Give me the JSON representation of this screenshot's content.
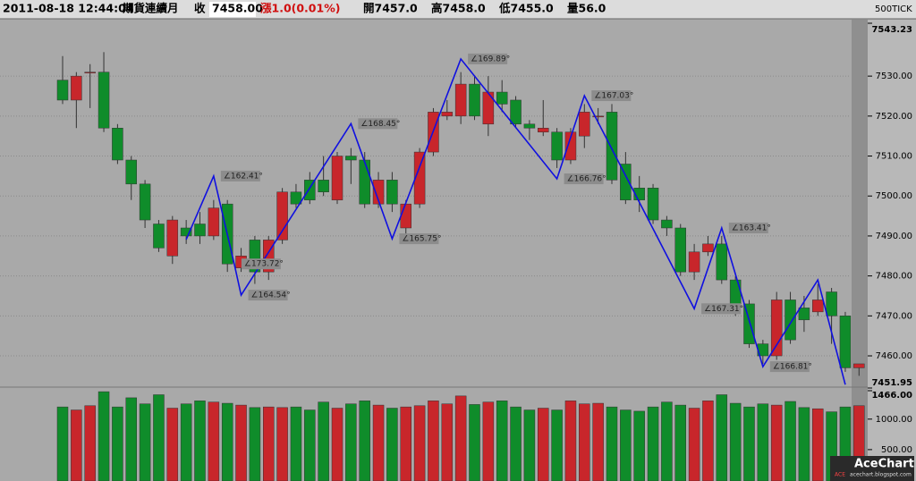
{
  "header": {
    "datetime": "2011-08-18 12:44:04",
    "symbol": "期貨連續月",
    "close_label": "收",
    "close": "7458.00",
    "change": "漲1.0(0.01%)",
    "open": "開7457.0",
    "high": "高7458.0",
    "low": "低7455.0",
    "volume": "量56.0",
    "interval": "500TICK"
  },
  "chart_data": {
    "type": "candlestick",
    "up_color": "#c8262b",
    "down_color": "#0f8c2a",
    "zigzag_color": "#1010e0",
    "open": [
      7529,
      7524,
      7531,
      7531,
      7517,
      7509,
      7503,
      7493,
      7485,
      7492,
      7493,
      7490,
      7498,
      7482,
      7489,
      7481,
      7489,
      7501,
      7504,
      7504,
      7499,
      7510,
      7509,
      7498,
      7504,
      7492,
      7498,
      7511,
      7520,
      7520,
      7528,
      7518,
      7526,
      7524,
      7518,
      7516,
      7516,
      7509,
      7515,
      7520,
      7521,
      7508,
      7502,
      7502,
      7494,
      7492,
      7481,
      7486,
      7488,
      7479,
      7473,
      7463,
      7460,
      7474,
      7472,
      7471,
      7476,
      7470,
      7457
    ],
    "high": [
      7535,
      7531,
      7533,
      7536,
      7518,
      7510,
      7504,
      7494,
      7495,
      7494,
      7496,
      7499,
      7499,
      7487,
      7490,
      7490,
      7502,
      7503,
      7506,
      7510,
      7511,
      7512,
      7511,
      7506,
      7506,
      7499,
      7512,
      7522,
      7524,
      7531,
      7530,
      7530,
      7529,
      7525,
      7519,
      7524,
      7517,
      7517,
      7523,
      7522,
      7523,
      7511,
      7505,
      7503,
      7495,
      7493,
      7488,
      7490,
      7490,
      7480,
      7474,
      7464,
      7476,
      7476,
      7475,
      7478,
      7477,
      7471,
      7458
    ],
    "low": [
      7523,
      7517,
      7522,
      7516,
      7508,
      7499,
      7492,
      7486,
      7483,
      7488,
      7488,
      7489,
      7481,
      7481,
      7478,
      7479,
      7488,
      7497,
      7498,
      7500,
      7498,
      7503,
      7497,
      7497,
      7496,
      7490,
      7497,
      7510,
      7519,
      7518,
      7519,
      7515,
      7521,
      7517,
      7514,
      7515,
      7507,
      7508,
      7512,
      7518,
      7503,
      7498,
      7496,
      7493,
      7490,
      7480,
      7479,
      7485,
      7478,
      7470,
      7462,
      7458,
      7459,
      7463,
      7466,
      7470,
      7463,
      7456,
      7455
    ],
    "close": [
      7524,
      7530,
      7531,
      7517,
      7509,
      7503,
      7494,
      7487,
      7494,
      7490,
      7490,
      7497,
      7483,
      7485,
      7481,
      7489,
      7501,
      7498,
      7499,
      7501,
      7510,
      7509,
      7498,
      7504,
      7498,
      7498,
      7511,
      7521,
      7521,
      7528,
      7520,
      7526,
      7523,
      7518,
      7517,
      7517,
      7509,
      7516,
      7521,
      7520,
      7504,
      7499,
      7499,
      7494,
      7492,
      7481,
      7486,
      7488,
      7479,
      7473,
      7463,
      7460,
      7474,
      7464,
      7469,
      7474,
      7470,
      7457,
      7458
    ],
    "volume": [
      1200,
      1150,
      1220,
      1450,
      1200,
      1350,
      1250,
      1400,
      1180,
      1250,
      1300,
      1280,
      1260,
      1230,
      1190,
      1200,
      1190,
      1200,
      1150,
      1280,
      1180,
      1250,
      1300,
      1230,
      1180,
      1200,
      1220,
      1300,
      1250,
      1380,
      1240,
      1280,
      1300,
      1200,
      1150,
      1180,
      1150,
      1300,
      1250,
      1260,
      1200,
      1150,
      1130,
      1200,
      1280,
      1230,
      1180,
      1300,
      1400,
      1260,
      1200,
      1250,
      1230,
      1290,
      1190,
      1170,
      1120,
      1200,
      1220
    ],
    "ylim": [
      7451.95,
      7543.23
    ],
    "yticks": [
      {
        "value": 7543.23,
        "label": "7543.23"
      },
      {
        "value": 7530,
        "label": "7530.00"
      },
      {
        "value": 7520,
        "label": "7520.00"
      },
      {
        "value": 7510,
        "label": "7510.00"
      },
      {
        "value": 7500,
        "label": "7500.00"
      },
      {
        "value": 7490,
        "label": "7490.00"
      },
      {
        "value": 7480,
        "label": "7480.00"
      },
      {
        "value": 7470,
        "label": "7470.00"
      },
      {
        "value": 7460,
        "label": "7460.00"
      },
      {
        "value": 7451.95,
        "label": "7451.95"
      }
    ],
    "y2lim": [
      0,
      1466
    ],
    "y2ticks": [
      {
        "value": 1466,
        "label": "1466.00"
      },
      {
        "value": 1000,
        "label": "1000.00"
      },
      {
        "value": 500,
        "label": "500.00"
      }
    ],
    "grid": true,
    "zigzag": {
      "index": [
        9,
        11,
        12.5,
        13,
        21,
        24,
        29,
        36,
        38,
        46,
        48,
        51,
        55,
        57
      ],
      "values": [
        7489.1,
        7505,
        7483,
        7475.2,
        7518.1,
        7489.3,
        7534.3,
        7504.3,
        7525.1,
        7471.8,
        7492,
        7457.3,
        7479,
        7452.8
      ],
      "labels": [
        null,
        "∠162.41°",
        "∠173.72°",
        "∠164.54°",
        "∠168.45°",
        "∠165.75°",
        "∠169.89°",
        "∠166.76°",
        "∠167.03°",
        "∠167.31°",
        "∠163.41°",
        "∠166.81°",
        null,
        null
      ]
    }
  },
  "logo": {
    "name": "AceChart",
    "site": "acechart.blogspot.com",
    "badge": "ACE"
  }
}
